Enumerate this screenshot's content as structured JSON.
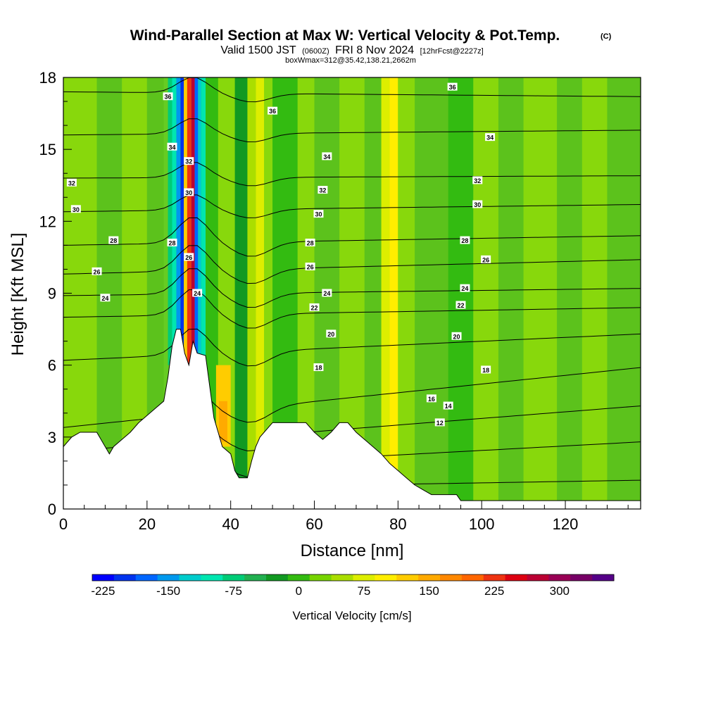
{
  "chart_data": {
    "type": "heatmap",
    "title": "Wind-Parallel Section at Max W: Vertical Velocity & Pot.Temp.",
    "title_mark": "(C)",
    "subtitle": {
      "valid_label": "Valid 1500 JST",
      "utc_note": "(0600Z)",
      "date": "FRI 8 Nov 2024",
      "forecast_note": "[12hrFcst@2227z]"
    },
    "box_note": "boxWmax=312@35.42,138.21,2662m",
    "xlabel": "Distance [nm]",
    "ylabel": "Height [Kft MSL]",
    "xlim": [
      0,
      138
    ],
    "ylim": [
      0,
      18
    ],
    "xticks": [
      0,
      20,
      40,
      60,
      80,
      100,
      120
    ],
    "yticks": [
      0,
      3,
      6,
      9,
      12,
      15,
      18
    ],
    "terrain": [
      [
        0,
        2.6
      ],
      [
        2,
        3.0
      ],
      [
        4,
        3.2
      ],
      [
        8,
        3.2
      ],
      [
        10,
        2.6
      ],
      [
        11,
        2.3
      ],
      [
        12,
        2.6
      ],
      [
        14,
        2.9
      ],
      [
        16,
        3.2
      ],
      [
        18,
        3.6
      ],
      [
        20,
        3.9
      ],
      [
        22,
        4.2
      ],
      [
        24,
        4.5
      ],
      [
        25,
        5.5
      ],
      [
        26,
        6.8
      ],
      [
        27,
        7.5
      ],
      [
        28,
        7.5
      ],
      [
        29,
        6.5
      ],
      [
        30,
        6.0
      ],
      [
        31,
        7.0
      ],
      [
        32,
        6.5
      ],
      [
        34,
        6.4
      ],
      [
        36,
        3.8
      ],
      [
        37,
        3.2
      ],
      [
        38,
        2.6
      ],
      [
        40,
        2.3
      ],
      [
        41,
        1.6
      ],
      [
        42,
        1.3
      ],
      [
        44,
        1.3
      ],
      [
        45,
        2.0
      ],
      [
        46,
        2.6
      ],
      [
        47,
        3.0
      ],
      [
        48,
        3.2
      ],
      [
        50,
        3.6
      ],
      [
        58,
        3.6
      ],
      [
        60,
        3.2
      ],
      [
        62,
        2.9
      ],
      [
        64,
        3.2
      ],
      [
        66,
        3.6
      ],
      [
        68,
        3.6
      ],
      [
        70,
        3.2
      ],
      [
        72,
        2.9
      ],
      [
        74,
        2.6
      ],
      [
        76,
        2.3
      ],
      [
        78,
        1.9
      ],
      [
        80,
        1.6
      ],
      [
        82,
        1.3
      ],
      [
        84,
        1.0
      ],
      [
        86,
        0.8
      ],
      [
        88,
        0.6
      ],
      [
        94,
        0.6
      ],
      [
        95,
        0.35
      ],
      [
        138,
        0.35
      ]
    ],
    "theta_contours": [
      {
        "level": 12,
        "y_left": 0.8,
        "y_right": 1.2
      },
      {
        "level": 14,
        "y_left": 1.5,
        "y_right": 2.8
      },
      {
        "level": 16,
        "y_left": 2.4,
        "y_right": 4.3
      },
      {
        "level": 18,
        "y_left": 3.4,
        "y_right": 5.9
      },
      {
        "level": 20,
        "y_left": 6.2,
        "y_right": 7.3
      },
      {
        "level": 22,
        "y_left": 8.0,
        "y_right": 8.4
      },
      {
        "level": 24,
        "y_left": 8.9,
        "y_right": 9.2
      },
      {
        "level": 26,
        "y_left": 9.8,
        "y_right": 10.4
      },
      {
        "level": 28,
        "y_left": 11.0,
        "y_right": 11.4
      },
      {
        "level": 30,
        "y_left": 12.4,
        "y_right": 12.7
      },
      {
        "level": 32,
        "y_left": 13.8,
        "y_right": 13.9
      },
      {
        "level": 34,
        "y_left": 15.6,
        "y_right": 15.8
      },
      {
        "level": 36,
        "y_left": 17.4,
        "y_right": 17.2
      }
    ],
    "contour_labels": [
      {
        "text": "36",
        "x": 25,
        "y": 17.2
      },
      {
        "text": "36",
        "x": 50,
        "y": 16.6
      },
      {
        "text": "36",
        "x": 93,
        "y": 17.6
      },
      {
        "text": "34",
        "x": 26,
        "y": 15.1
      },
      {
        "text": "34",
        "x": 63,
        "y": 14.7
      },
      {
        "text": "34",
        "x": 102,
        "y": 15.5
      },
      {
        "text": "32",
        "x": 2,
        "y": 13.6
      },
      {
        "text": "32",
        "x": 30,
        "y": 14.5
      },
      {
        "text": "32",
        "x": 62,
        "y": 13.3
      },
      {
        "text": "32",
        "x": 99,
        "y": 13.7
      },
      {
        "text": "30",
        "x": 3,
        "y": 12.5
      },
      {
        "text": "30",
        "x": 30,
        "y": 13.2
      },
      {
        "text": "30",
        "x": 61,
        "y": 12.3
      },
      {
        "text": "30",
        "x": 99,
        "y": 12.7
      },
      {
        "text": "28",
        "x": 12,
        "y": 11.2
      },
      {
        "text": "28",
        "x": 26,
        "y": 11.1
      },
      {
        "text": "28",
        "x": 59,
        "y": 11.1
      },
      {
        "text": "28",
        "x": 96,
        "y": 11.2
      },
      {
        "text": "26",
        "x": 8,
        "y": 9.9
      },
      {
        "text": "26",
        "x": 30,
        "y": 10.5
      },
      {
        "text": "26",
        "x": 59,
        "y": 10.1
      },
      {
        "text": "26",
        "x": 101,
        "y": 10.4
      },
      {
        "text": "24",
        "x": 10,
        "y": 8.8
      },
      {
        "text": "24",
        "x": 32,
        "y": 9.0
      },
      {
        "text": "24",
        "x": 63,
        "y": 9.0
      },
      {
        "text": "24",
        "x": 96,
        "y": 9.2
      },
      {
        "text": "22",
        "x": 60,
        "y": 8.4
      },
      {
        "text": "22",
        "x": 95,
        "y": 8.5
      },
      {
        "text": "20",
        "x": 64,
        "y": 7.3
      },
      {
        "text": "20",
        "x": 94,
        "y": 7.2
      },
      {
        "text": "18",
        "x": 61,
        "y": 5.9
      },
      {
        "text": "18",
        "x": 101,
        "y": 5.8
      },
      {
        "text": "16",
        "x": 88,
        "y": 4.6
      },
      {
        "text": "14",
        "x": 92,
        "y": 4.3
      },
      {
        "text": "12",
        "x": 90,
        "y": 3.6
      }
    ],
    "colorbar": {
      "label": "Vertical Velocity [cm/s]",
      "ticks": [
        "-225",
        "-150",
        "-75",
        "0",
        "75",
        "150",
        "225",
        "300"
      ],
      "colors": [
        "#0000ff",
        "#0033ee",
        "#0066ff",
        "#0099ee",
        "#00cccc",
        "#00e6b0",
        "#00cc77",
        "#22b050",
        "#119922",
        "#33bb11",
        "#77d400",
        "#aade00",
        "#ddee00",
        "#ffee00",
        "#ffcc00",
        "#ffaa00",
        "#ff8800",
        "#ff6600",
        "#ee3311",
        "#dd0011",
        "#bb0033",
        "#990055",
        "#770066",
        "#550088"
      ]
    }
  }
}
